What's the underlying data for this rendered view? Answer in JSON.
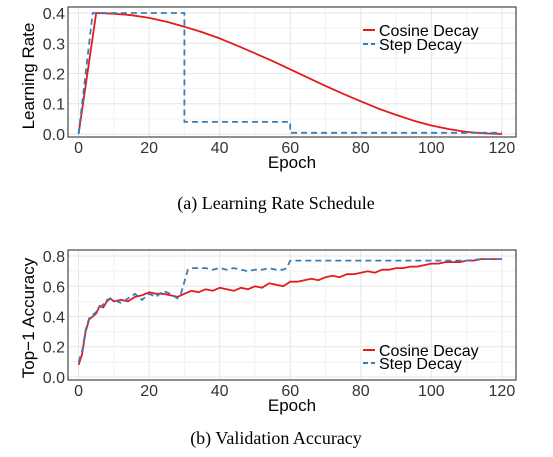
{
  "figure": {
    "colors": {
      "cosine": "#e41a1c",
      "step": "#377eb8",
      "grid": "#e6e6e6",
      "axis": "#222222"
    }
  },
  "chart_data": [
    {
      "type": "line",
      "caption": "(a) Learning Rate Schedule",
      "xlabel": "Epoch",
      "ylabel": "Learning Rate",
      "xlim": [
        -3,
        124
      ],
      "ylim": [
        -0.01,
        0.42
      ],
      "xticks": [
        0,
        20,
        40,
        60,
        80,
        100,
        120
      ],
      "yticks": [
        0.0,
        0.1,
        0.2,
        0.3,
        0.4
      ],
      "ytick_labels": [
        "0.0",
        "0.1",
        "0.2",
        "0.3",
        "0.4"
      ],
      "grid": true,
      "legend_position": "top-right",
      "series": [
        {
          "name": "Cosine Decay",
          "color": "#e41a1c",
          "style": "solid",
          "x": [
            0,
            5,
            10,
            15,
            20,
            25,
            30,
            35,
            40,
            45,
            50,
            55,
            60,
            65,
            70,
            75,
            80,
            85,
            90,
            95,
            100,
            105,
            110,
            115,
            120
          ],
          "y": [
            0.0,
            0.4,
            0.398,
            0.393,
            0.384,
            0.371,
            0.355,
            0.337,
            0.316,
            0.292,
            0.267,
            0.241,
            0.214,
            0.186,
            0.159,
            0.133,
            0.108,
            0.084,
            0.063,
            0.044,
            0.028,
            0.016,
            0.007,
            0.002,
            0.0
          ]
        },
        {
          "name": "Step Decay",
          "color": "#377eb8",
          "style": "dashed",
          "x": [
            0,
            4,
            30,
            30,
            60,
            60,
            120
          ],
          "y": [
            0.0,
            0.4,
            0.4,
            0.04,
            0.04,
            0.004,
            0.004
          ]
        }
      ]
    },
    {
      "type": "line",
      "caption": "(b) Validation Accuracy",
      "xlabel": "Epoch",
      "ylabel": "Top−1 Accuracy",
      "xlim": [
        -3,
        124
      ],
      "ylim": [
        -0.02,
        0.84
      ],
      "xticks": [
        0,
        20,
        40,
        60,
        80,
        100,
        120
      ],
      "yticks": [
        0.0,
        0.2,
        0.4,
        0.6,
        0.8
      ],
      "ytick_labels": [
        "0.0",
        "0.2",
        "0.4",
        "0.6",
        "0.8"
      ],
      "grid": true,
      "legend_position": "bottom-right",
      "series": [
        {
          "name": "Cosine Decay",
          "color": "#e41a1c",
          "style": "solid",
          "x": [
            0,
            1,
            2,
            3,
            4,
            5,
            6,
            7,
            8,
            9,
            10,
            12,
            14,
            16,
            18,
            20,
            22,
            24,
            26,
            28,
            30,
            32,
            34,
            36,
            38,
            40,
            42,
            44,
            46,
            48,
            50,
            52,
            54,
            56,
            58,
            60,
            62,
            64,
            66,
            68,
            70,
            72,
            74,
            76,
            78,
            80,
            82,
            84,
            86,
            88,
            90,
            92,
            94,
            96,
            98,
            100,
            102,
            104,
            106,
            108,
            110,
            112,
            114,
            116,
            118,
            120
          ],
          "y": [
            0.08,
            0.15,
            0.3,
            0.38,
            0.4,
            0.42,
            0.47,
            0.46,
            0.5,
            0.52,
            0.5,
            0.51,
            0.5,
            0.53,
            0.54,
            0.56,
            0.55,
            0.55,
            0.54,
            0.53,
            0.55,
            0.57,
            0.56,
            0.58,
            0.57,
            0.59,
            0.58,
            0.57,
            0.59,
            0.58,
            0.6,
            0.59,
            0.62,
            0.61,
            0.6,
            0.63,
            0.63,
            0.64,
            0.65,
            0.64,
            0.66,
            0.67,
            0.66,
            0.68,
            0.68,
            0.69,
            0.7,
            0.69,
            0.71,
            0.71,
            0.72,
            0.72,
            0.73,
            0.73,
            0.74,
            0.75,
            0.75,
            0.76,
            0.76,
            0.76,
            0.77,
            0.77,
            0.78,
            0.78,
            0.78,
            0.78
          ]
        },
        {
          "name": "Step Decay",
          "color": "#377eb8",
          "style": "dashed",
          "x": [
            0,
            1,
            2,
            3,
            4,
            5,
            6,
            7,
            8,
            9,
            10,
            12,
            14,
            16,
            18,
            20,
            22,
            24,
            26,
            28,
            29,
            30,
            31,
            32,
            34,
            36,
            38,
            40,
            42,
            44,
            46,
            48,
            50,
            52,
            54,
            56,
            58,
            59,
            60,
            61,
            62,
            66,
            70,
            74,
            78,
            82,
            86,
            90,
            94,
            98,
            102,
            106,
            110,
            114,
            118,
            120
          ],
          "y": [
            0.1,
            0.17,
            0.31,
            0.39,
            0.41,
            0.43,
            0.46,
            0.48,
            0.51,
            0.52,
            0.51,
            0.49,
            0.52,
            0.55,
            0.51,
            0.55,
            0.53,
            0.57,
            0.55,
            0.52,
            0.55,
            0.63,
            0.71,
            0.72,
            0.72,
            0.72,
            0.71,
            0.72,
            0.71,
            0.72,
            0.71,
            0.7,
            0.71,
            0.71,
            0.72,
            0.71,
            0.71,
            0.72,
            0.77,
            0.77,
            0.77,
            0.77,
            0.77,
            0.77,
            0.77,
            0.77,
            0.77,
            0.77,
            0.77,
            0.77,
            0.77,
            0.77,
            0.77,
            0.78,
            0.78,
            0.78
          ]
        }
      ]
    }
  ]
}
